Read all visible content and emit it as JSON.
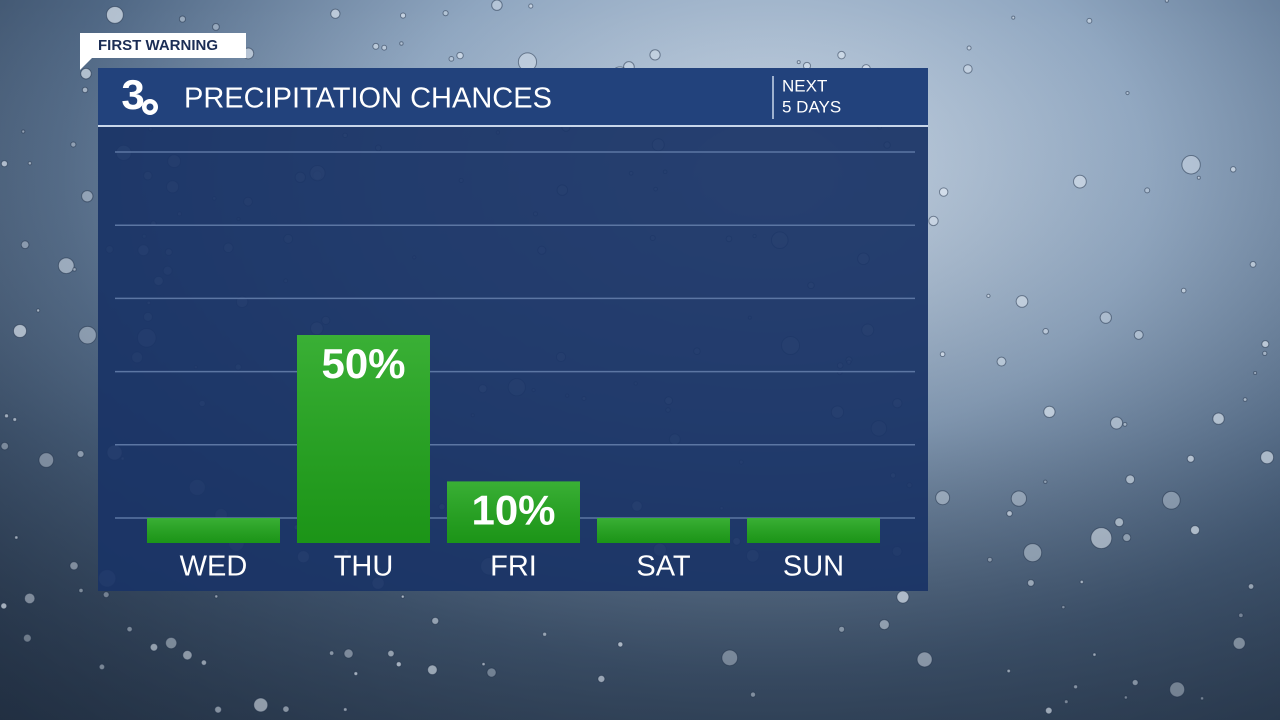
{
  "badge": "FIRST WARNING",
  "logo": "3",
  "chart_data": {
    "type": "bar",
    "title": "PRECIPITATION CHANCES",
    "subtitle": [
      "NEXT",
      "5 DAYS"
    ],
    "categories": [
      "WED",
      "THU",
      "FRI",
      "SAT",
      "SUN"
    ],
    "values": [
      0,
      50,
      10,
      0,
      0
    ],
    "value_labels": [
      null,
      "50%",
      "10%",
      null,
      null
    ],
    "color": "#1fa51a",
    "ylim": [
      0,
      100
    ],
    "yticks": [
      0,
      20,
      40,
      60,
      80,
      100
    ],
    "grid": true
  }
}
